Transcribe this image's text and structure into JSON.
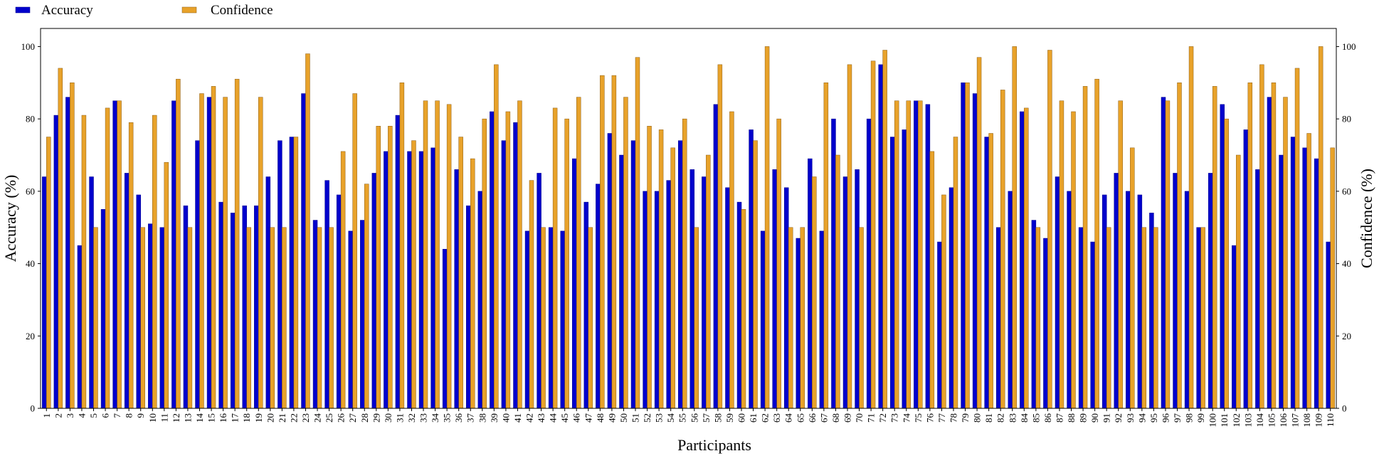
{
  "chart_data": {
    "type": "bar",
    "xlabel": "Participants",
    "ylabel_left": "Accuracy (%)",
    "ylabel_right": "Confidence (%)",
    "ylim": [
      0,
      105
    ],
    "yticks": [
      0,
      20,
      40,
      60,
      80,
      100
    ],
    "grid": false,
    "legend_position": "top-left",
    "categories": [
      "1",
      "2",
      "3",
      "4",
      "5",
      "6",
      "7",
      "8",
      "9",
      "10",
      "11",
      "12",
      "13",
      "14",
      "15",
      "16",
      "17",
      "18",
      "19",
      "20",
      "21",
      "22",
      "23",
      "24",
      "25",
      "26",
      "27",
      "28",
      "29",
      "30",
      "31",
      "32",
      "33",
      "34",
      "35",
      "36",
      "37",
      "38",
      "39",
      "40",
      "41",
      "42",
      "43",
      "44",
      "45",
      "46",
      "47",
      "48",
      "49",
      "50",
      "51",
      "52",
      "53",
      "54",
      "55",
      "56",
      "57",
      "58",
      "59",
      "60",
      "61",
      "62",
      "63",
      "64",
      "65",
      "66",
      "67",
      "68",
      "69",
      "70",
      "71",
      "72",
      "73",
      "74",
      "75",
      "76",
      "77",
      "78",
      "79",
      "80",
      "81",
      "82",
      "83",
      "84",
      "85",
      "86",
      "87",
      "88",
      "89",
      "90",
      "91",
      "92",
      "93",
      "94",
      "95",
      "96",
      "97",
      "98",
      "99",
      "100",
      "101",
      "102",
      "103",
      "104",
      "105",
      "106",
      "107",
      "108",
      "109",
      "110"
    ],
    "series": [
      {
        "name": "Accuracy",
        "color": "#0000cc",
        "values": [
          64,
          81,
          86,
          45,
          64,
          55,
          85,
          65,
          59,
          51,
          50,
          85,
          56,
          74,
          86,
          57,
          54,
          56,
          56,
          64,
          74,
          75,
          87,
          52,
          63,
          59,
          49,
          52,
          65,
          71,
          81,
          71,
          71,
          72,
          44,
          66,
          56,
          60,
          82,
          74,
          79,
          49,
          65,
          50,
          49,
          69,
          57,
          62,
          76,
          70,
          74,
          60,
          60,
          63,
          74,
          66,
          64,
          84,
          61,
          57,
          77,
          49,
          66,
          61,
          47,
          69,
          49,
          80,
          64,
          66,
          80,
          95,
          75,
          77,
          85,
          84,
          46,
          61,
          90,
          87,
          75,
          50,
          60,
          82,
          52,
          47,
          64,
          60,
          50,
          46,
          59,
          65,
          60,
          59,
          54,
          86,
          65,
          60,
          50,
          65,
          84,
          45,
          77,
          66,
          86,
          70,
          75,
          72,
          69,
          46
        ]
      },
      {
        "name": "Confidence",
        "color": "#e8a22a",
        "values": [
          75,
          94,
          90,
          81,
          50,
          83,
          85,
          79,
          50,
          81,
          68,
          91,
          50,
          87,
          89,
          86,
          91,
          50,
          86,
          50,
          50,
          75,
          98,
          50,
          50,
          71,
          87,
          62,
          78,
          78,
          90,
          74,
          85,
          85,
          84,
          75,
          69,
          80,
          95,
          82,
          85,
          63,
          50,
          83,
          80,
          86,
          50,
          92,
          92,
          86,
          97,
          78,
          77,
          72,
          80,
          50,
          70,
          95,
          82,
          55,
          74,
          100,
          80,
          50,
          50,
          64,
          90,
          70,
          95,
          50,
          96,
          99,
          85,
          85,
          85,
          71,
          59,
          75,
          90,
          97,
          76,
          88,
          100,
          83,
          50,
          99,
          85,
          82,
          89,
          91,
          50,
          85,
          72,
          50,
          50,
          85,
          90,
          100,
          50,
          89,
          80,
          70,
          90,
          95,
          90,
          86,
          94,
          76,
          100,
          72
        ]
      }
    ]
  }
}
